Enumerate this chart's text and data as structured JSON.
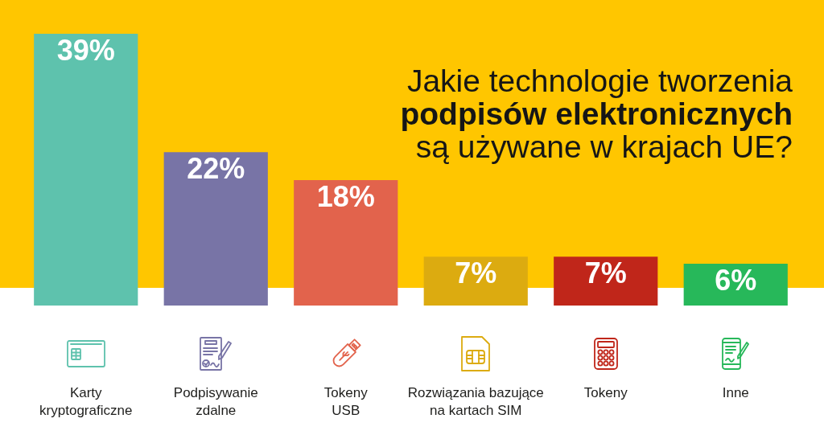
{
  "chart_data": {
    "type": "bar",
    "title": "Jakie technologie tworzenia podpisów elektronicznych są używane w krajach UE?",
    "categories": [
      "Karty kryptograficzne",
      "Podpisywanie zdalne",
      "Tokeny USB",
      "Rozwiązania bazujące na kartach SIM",
      "Tokeny",
      "Inne"
    ],
    "values": [
      39,
      22,
      18,
      7,
      7,
      6
    ],
    "colors": [
      "#5ec2ad",
      "#7874a6",
      "#e2634c",
      "#dcab10",
      "#c0261a",
      "#27b85a"
    ],
    "value_labels": [
      "39%",
      "22%",
      "18%",
      "7%",
      "7%",
      "6%"
    ]
  }
}
